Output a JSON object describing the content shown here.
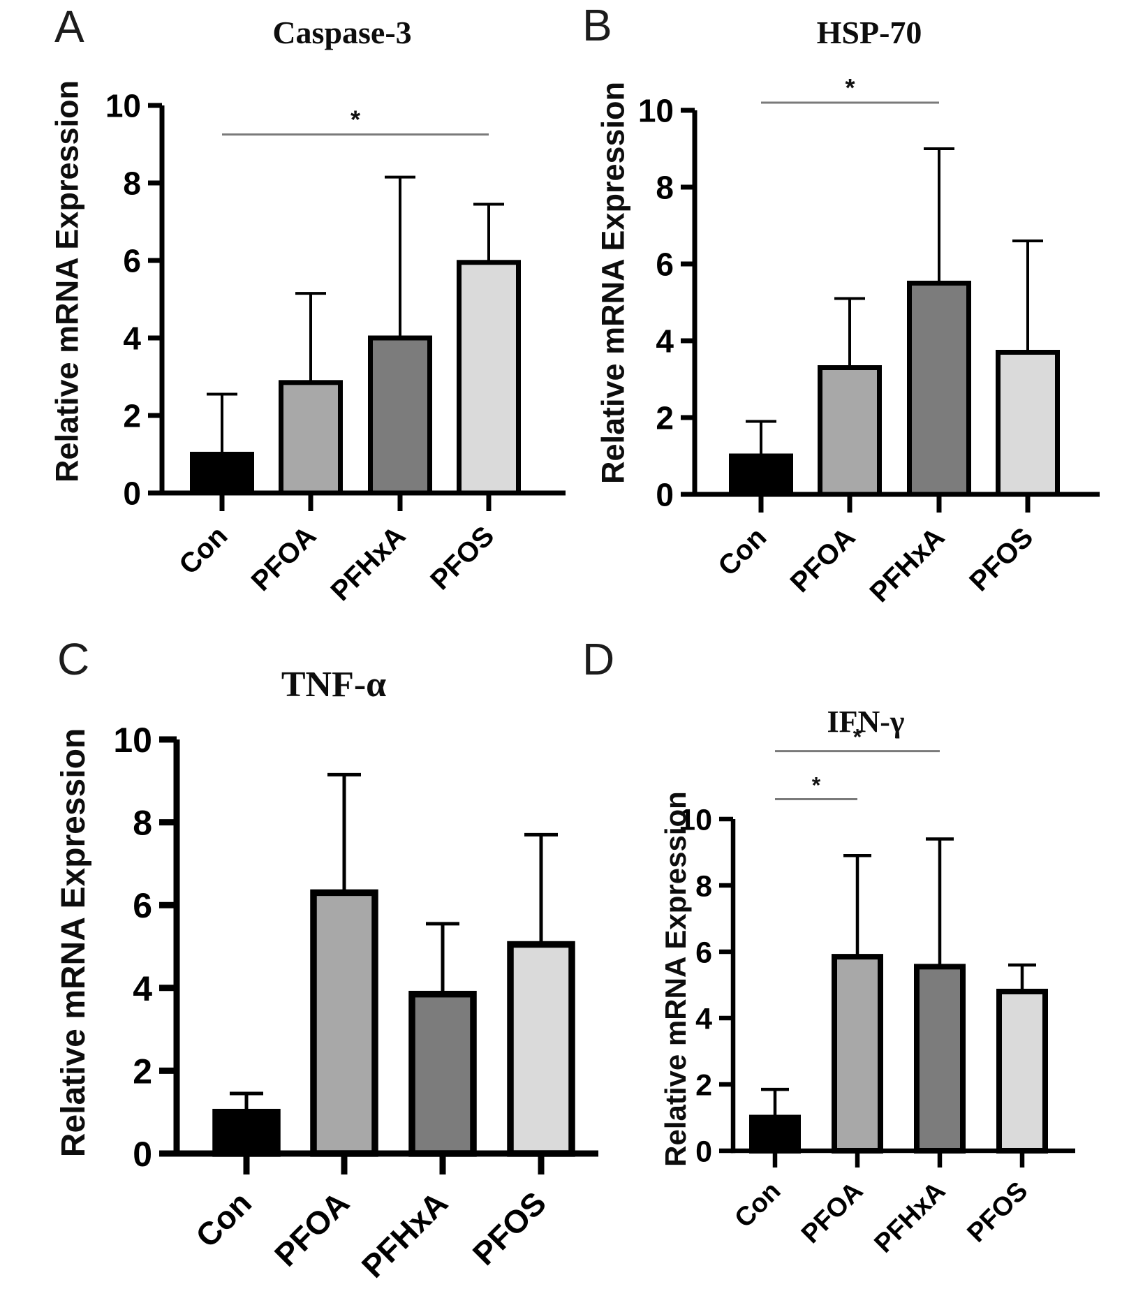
{
  "figure_background": "#ffffff",
  "panels": [
    {
      "letter": "A",
      "title": "Caspase-3"
    },
    {
      "letter": "B",
      "title": "HSP-70"
    },
    {
      "letter": "C",
      "title": "TNF-α"
    },
    {
      "letter": "D",
      "title": "IFN-γ"
    }
  ],
  "bar_colors": {
    "Con": "#000000",
    "PFOA": "#a8a8a8",
    "PFHxA": "#7c7c7c",
    "PFOS": "#dadada"
  },
  "colors": {
    "bar_border": "#000000",
    "axis": "#000000",
    "sig_line": "#7a7a7a",
    "star": "#111111",
    "text": "#000000"
  },
  "chart_data": [
    {
      "panel": "A",
      "type": "bar",
      "title": "Caspase-3",
      "categories": [
        "Con",
        "PFOA",
        "PFHxA",
        "PFOS"
      ],
      "values": [
        1.0,
        2.85,
        4.0,
        5.95
      ],
      "errors_plus": [
        1.55,
        2.3,
        4.15,
        1.5
      ],
      "error_bars": "upper only, capped",
      "xlabel": "",
      "ylabel": "Relative mRNA Expression",
      "ylim": [
        0,
        10
      ],
      "yticks": [
        0,
        2,
        4,
        6,
        8,
        10
      ],
      "grid": false,
      "legend": "none",
      "significance": [
        {
          "from": "Con",
          "to": "PFOS",
          "label": "*",
          "line_y": 9.25
        }
      ]
    },
    {
      "panel": "B",
      "type": "bar",
      "title": "HSP-70",
      "categories": [
        "Con",
        "PFOA",
        "PFHxA",
        "PFOS"
      ],
      "values": [
        1.0,
        3.3,
        5.5,
        3.7
      ],
      "errors_plus": [
        0.9,
        1.8,
        3.5,
        2.9
      ],
      "error_bars": "upper only, capped",
      "xlabel": "",
      "ylabel": "Relative mRNA Expression",
      "ylim": [
        0,
        10
      ],
      "yticks": [
        0,
        2,
        4,
        6,
        8,
        10
      ],
      "grid": false,
      "legend": "none",
      "significance": [
        {
          "from": "Con",
          "to": "PFHxA",
          "label": "*",
          "line_y": 10.2
        }
      ]
    },
    {
      "panel": "C",
      "type": "bar",
      "title": "TNF-α",
      "categories": [
        "Con",
        "PFOA",
        "PFHxA",
        "PFOS"
      ],
      "values": [
        1.0,
        6.3,
        3.85,
        5.05
      ],
      "errors_plus": [
        0.45,
        2.85,
        1.7,
        2.65
      ],
      "error_bars": "upper only, capped",
      "xlabel": "",
      "ylabel": "Relative mRNA Expression",
      "ylim": [
        0,
        10
      ],
      "yticks": [
        0,
        2,
        4,
        6,
        8,
        10
      ],
      "grid": false,
      "legend": "none",
      "significance": []
    },
    {
      "panel": "D",
      "type": "bar",
      "title": "IFN-γ",
      "categories": [
        "Con",
        "PFOA",
        "PFHxA",
        "PFOS"
      ],
      "values": [
        1.0,
        5.85,
        5.55,
        4.8
      ],
      "errors_plus": [
        0.85,
        3.05,
        3.85,
        0.8
      ],
      "error_bars": "upper only, capped",
      "xlabel": "",
      "ylabel": "Relative mRNA Expression",
      "ylim": [
        0,
        10
      ],
      "yticks": [
        0,
        2,
        4,
        6,
        8,
        10
      ],
      "grid": false,
      "legend": "none",
      "significance": [
        {
          "from": "Con",
          "to": "PFOA",
          "label": "*",
          "line_y": 10.6
        },
        {
          "from": "Con",
          "to": "PFHxA",
          "label": "*",
          "line_y": 12.05
        }
      ]
    }
  ]
}
